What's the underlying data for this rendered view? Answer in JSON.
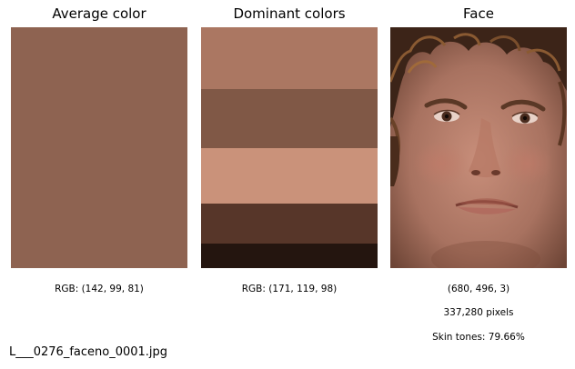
{
  "panels": {
    "average": {
      "title": "Average color",
      "color": "#8e6351",
      "caption": "RGB: (142, 99, 81)"
    },
    "dominant": {
      "title": "Dominant colors",
      "bands": [
        {
          "color": "#ab7762",
          "fraction": 0.255
        },
        {
          "color": "#805846",
          "fraction": 0.245
        },
        {
          "color": "#ca927a",
          "fraction": 0.23
        },
        {
          "color": "#573629",
          "fraction": 0.165
        },
        {
          "color": "#24150f",
          "fraction": 0.105
        }
      ],
      "caption": "RGB: (171, 119, 98)"
    },
    "face": {
      "title": "Face",
      "shape": "(680, 496, 3)",
      "pixel_count": "337,280 pixels",
      "skin_tones": "Skin tones: 79.66%"
    }
  },
  "filename": "L___0276_faceno_0001.jpg"
}
